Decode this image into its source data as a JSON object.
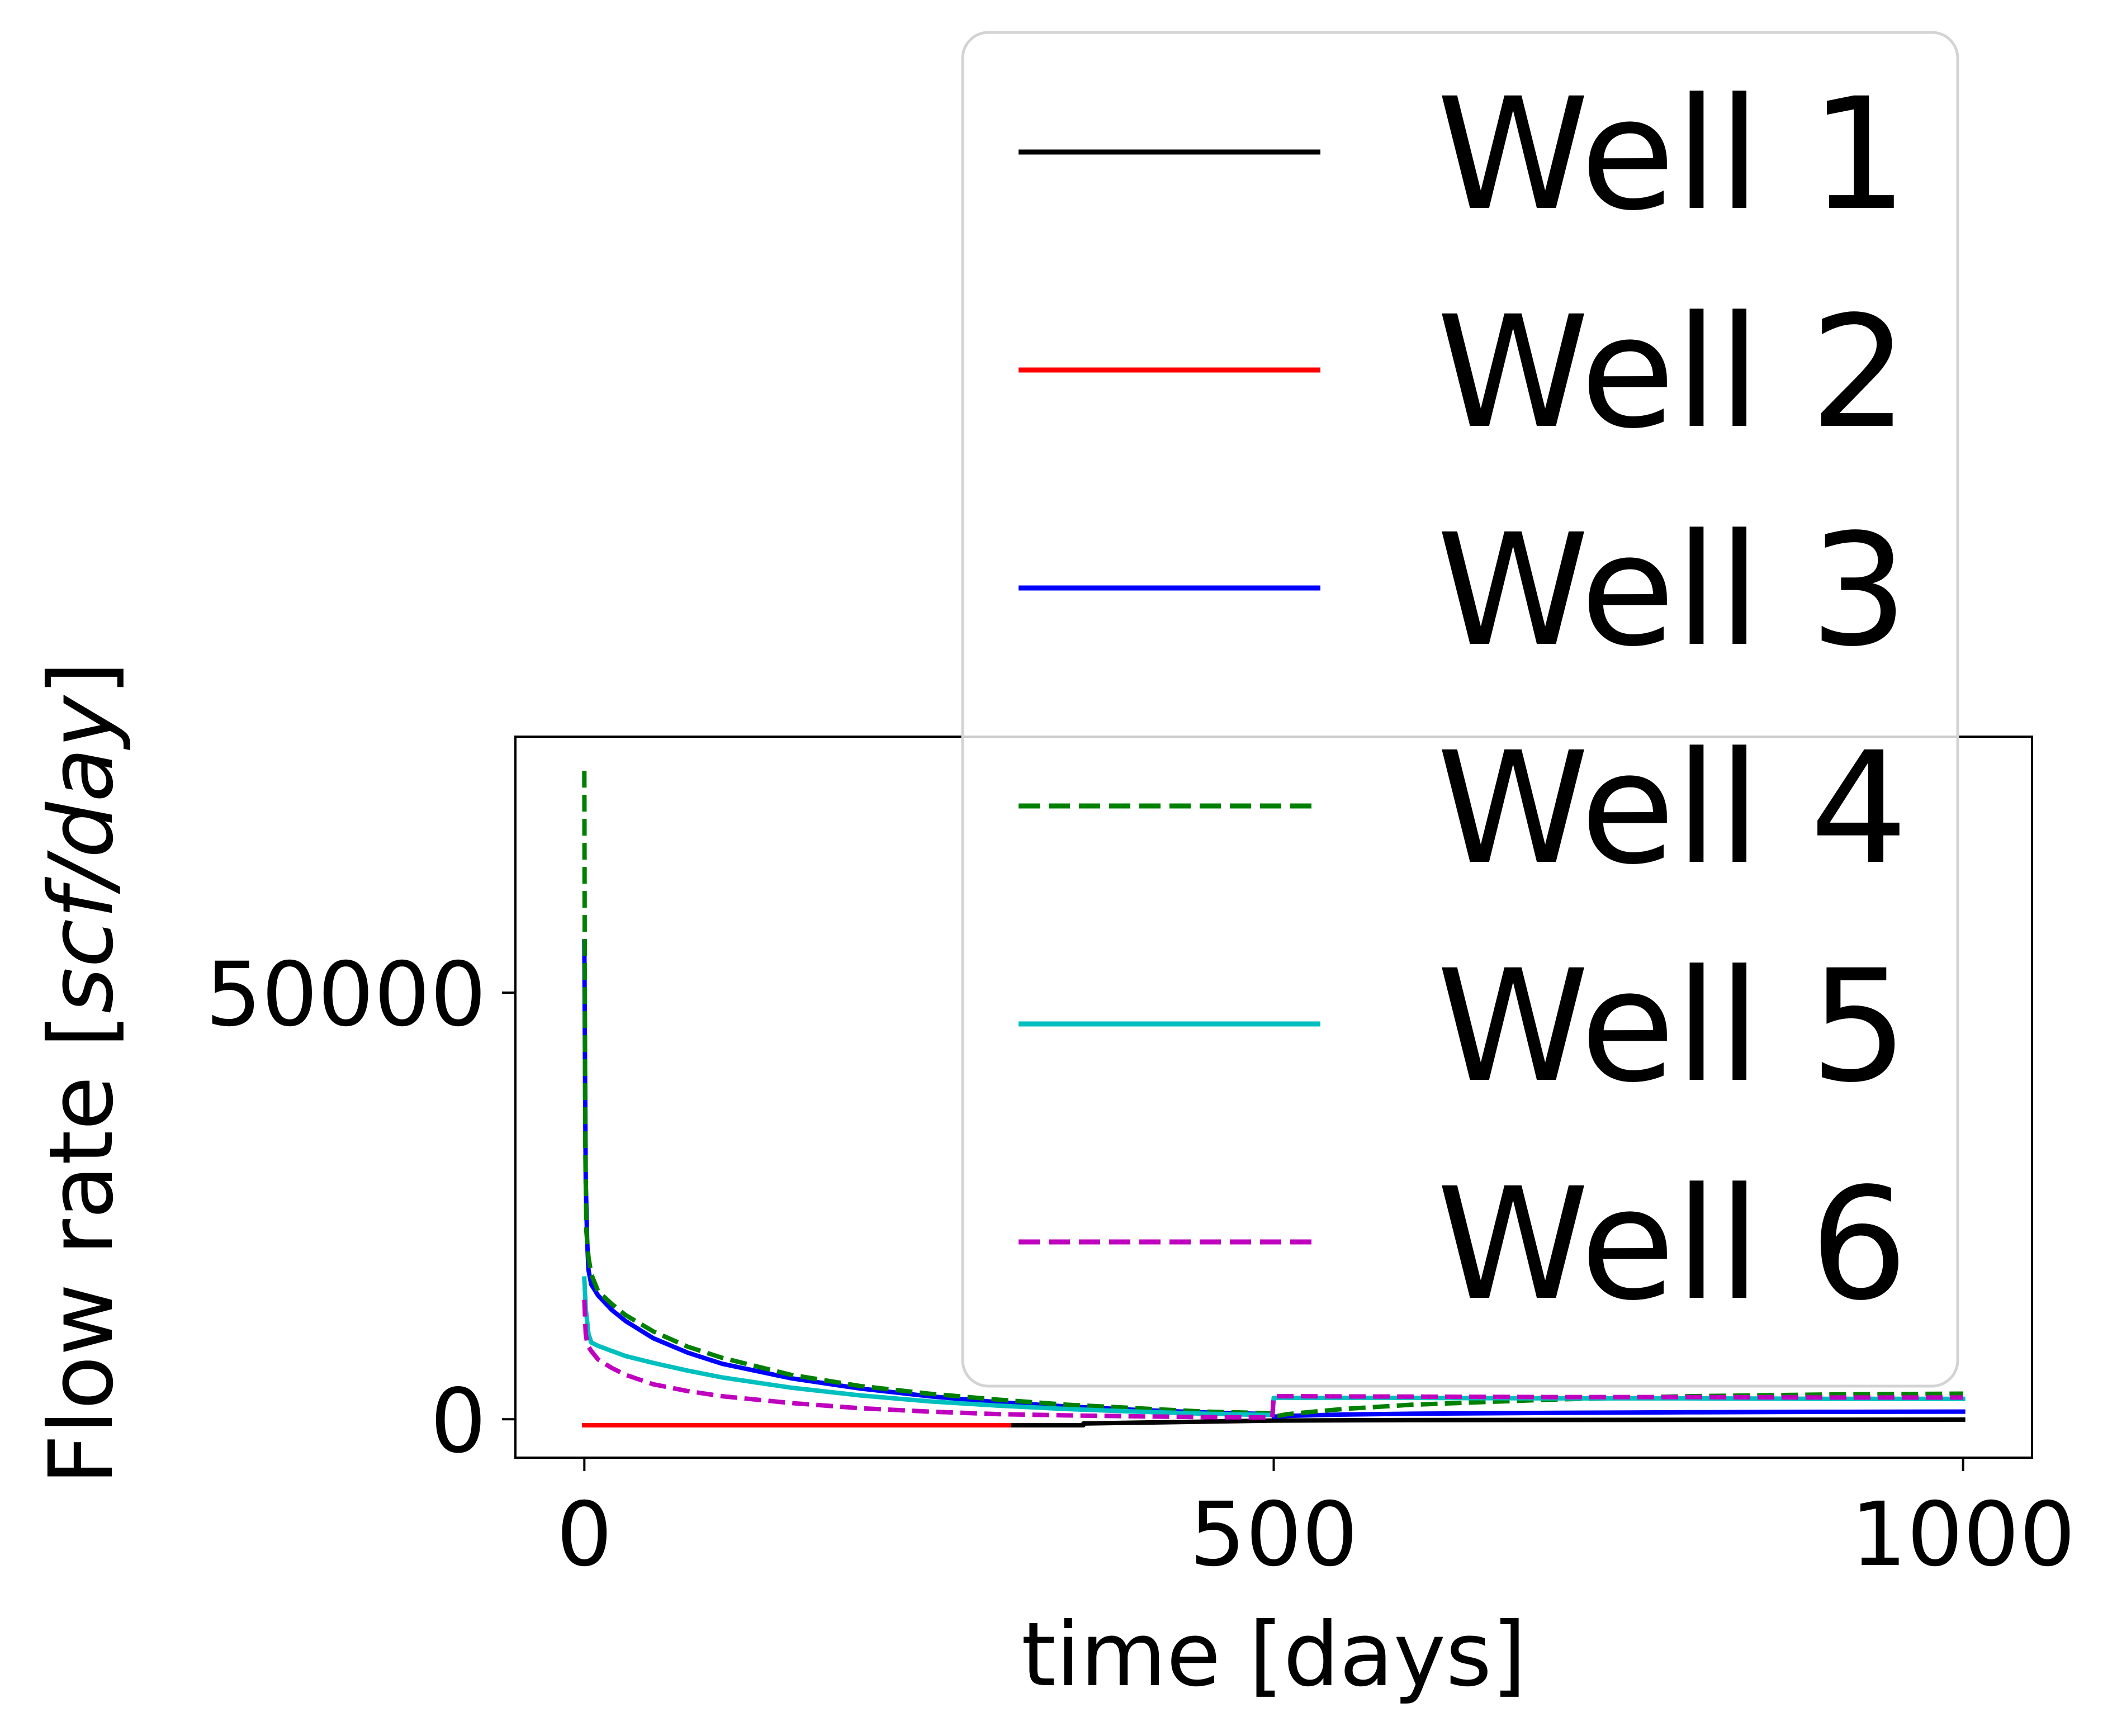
{
  "chart_data": {
    "type": "line",
    "title": "",
    "xlabel": "time [days]",
    "ylabel": "Flow rate [scf/day]",
    "ylabel_parts": {
      "prefix": "Flow rate [",
      "unit": "scf/day",
      "suffix": "]"
    },
    "xlim": [
      -50,
      1050
    ],
    "ylim": [
      -4500,
      80000
    ],
    "xticks": [
      0,
      500,
      1000
    ],
    "xtick_labels": [
      "0",
      "500",
      "1000"
    ],
    "yticks": [
      0,
      50000
    ],
    "ytick_labels": [
      "0",
      "50000"
    ],
    "grid": false,
    "legend": {
      "placement": "upper-right, extending above axes"
    },
    "series": [
      {
        "name": "Well 1",
        "color": "#000000",
        "dash": "solid",
        "x": [
          0,
          362,
          362,
          500,
          600,
          700,
          800,
          900,
          1000
        ],
        "y": [
          -700,
          -700,
          -500,
          -150,
          -100,
          -80,
          -60,
          -50,
          -40
        ]
      },
      {
        "name": "Well 2",
        "color": "#ff0000",
        "dash": "solid",
        "x": [
          0,
          308
        ],
        "y": [
          -700,
          -700
        ]
      },
      {
        "name": "Well 3",
        "color": "#0000ff",
        "dash": "solid",
        "x": [
          0,
          0.5,
          1,
          2,
          3,
          5,
          10,
          20,
          30,
          50,
          75,
          100,
          150,
          200,
          250,
          300,
          350,
          400,
          450,
          499,
          500,
          510,
          550,
          600,
          700,
          800,
          900,
          1000
        ],
        "y": [
          56000,
          40000,
          28000,
          21000,
          17500,
          15800,
          14500,
          12800,
          11500,
          9500,
          7800,
          6500,
          4800,
          3600,
          2700,
          2000,
          1500,
          1100,
          800,
          600,
          300,
          400,
          550,
          650,
          750,
          820,
          870,
          900
        ]
      },
      {
        "name": "Well 4",
        "color": "#008000",
        "dash": "dashed",
        "x": [
          0,
          0.3,
          0.7,
          1.5,
          3,
          5,
          10,
          20,
          30,
          50,
          75,
          100,
          150,
          200,
          250,
          300,
          350,
          400,
          450,
          499,
          500,
          510,
          550,
          600,
          700,
          800,
          900,
          1000
        ],
        "y": [
          76000,
          52000,
          32000,
          22000,
          19000,
          17000,
          15000,
          13500,
          12200,
          10300,
          8500,
          7200,
          5200,
          3900,
          3000,
          2300,
          1700,
          1300,
          900,
          700,
          300,
          600,
          1200,
          1700,
          2300,
          2700,
          2900,
          3000
        ]
      },
      {
        "name": "Well 5",
        "color": "#00bfbf",
        "dash": "solid",
        "x": [
          0,
          1,
          3,
          5,
          10,
          20,
          30,
          50,
          75,
          100,
          150,
          200,
          250,
          300,
          350,
          400,
          450,
          499,
          500,
          510,
          600,
          700,
          800,
          900,
          1000
        ],
        "y": [
          16500,
          13000,
          10000,
          9000,
          8600,
          8000,
          7400,
          6600,
          5700,
          4900,
          3700,
          2800,
          2100,
          1600,
          1200,
          900,
          650,
          500,
          2500,
          2500,
          2500,
          2450,
          2450,
          2400,
          2400
        ]
      },
      {
        "name": "Well 6",
        "color": "#bf00bf",
        "dash": "dashed",
        "x": [
          0,
          1,
          2,
          3,
          5,
          10,
          20,
          30,
          50,
          75,
          100,
          150,
          200,
          250,
          300,
          350,
          400,
          450,
          499,
          500,
          510,
          600,
          700,
          800,
          900,
          1000
        ],
        "y": [
          14000,
          10000,
          9000,
          8500,
          8000,
          7000,
          6000,
          5200,
          4100,
          3300,
          2700,
          1900,
          1300,
          900,
          600,
          450,
          350,
          250,
          200,
          2700,
          2700,
          2650,
          2600,
          2600,
          2550,
          2550
        ]
      }
    ]
  }
}
